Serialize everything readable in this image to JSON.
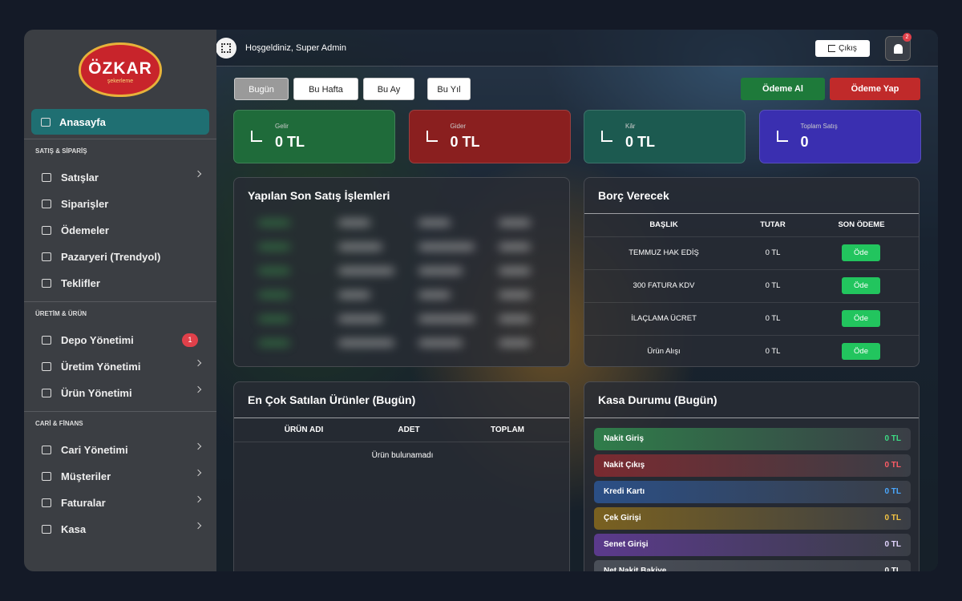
{
  "logo": {
    "brand": "ÖZKAR",
    "tagline": "şekerleme"
  },
  "header": {
    "welcome": "Hoşgeldiniz, Super Admin",
    "logout": "Çıkış",
    "notifications": "2"
  },
  "sidebar": {
    "home": "Anasayfa",
    "sections": [
      {
        "title": "SATIŞ & SİPARİŞ",
        "items": [
          {
            "label": "Satışlar",
            "chevron": true
          },
          {
            "label": "Siparişler"
          },
          {
            "label": "Ödemeler"
          },
          {
            "label": "Pazaryeri (Trendyol)"
          },
          {
            "label": "Teklifler"
          }
        ]
      },
      {
        "title": "ÜRETİM & ÜRÜN",
        "items": [
          {
            "label": "Depo Yönetimi",
            "badge": "1"
          },
          {
            "label": "Üretim Yönetimi",
            "chevron": true
          },
          {
            "label": "Ürün Yönetimi",
            "chevron": true
          }
        ]
      },
      {
        "title": "CARİ & FİNANS",
        "items": [
          {
            "label": "Cari Yönetimi",
            "chevron": true
          },
          {
            "label": "Müşteriler",
            "chevron": true
          },
          {
            "label": "Faturalar",
            "chevron": true
          },
          {
            "label": "Kasa",
            "chevron": true
          }
        ]
      }
    ]
  },
  "filters": [
    "Bugün",
    "Bu Hafta",
    "Bu Ay",
    "Bu Yıl"
  ],
  "actions": [
    "Ödeme Al",
    "Ödeme Yap"
  ],
  "stats": [
    {
      "label": "Gelir",
      "value": "0 TL",
      "color": "#1f6b3a"
    },
    {
      "label": "Gider",
      "value": "0 TL",
      "color": "#8a1f1f"
    },
    {
      "label": "Kâr",
      "value": "0 TL",
      "color": "#1c5a50"
    },
    {
      "label": "Toplam Satış",
      "value": "0",
      "color": "#3a2fb0"
    }
  ],
  "recent_sales": {
    "title": "Yapılan Son Satış İşlemleri"
  },
  "debts": {
    "title": "Borç Verecek",
    "columns": [
      "BAŞLIK",
      "TUTAR",
      "SON ÖDEME"
    ],
    "rows": [
      [
        "TEMMUZ HAK EDİŞ",
        "0 TL",
        "Öde"
      ],
      [
        "300 FATURA KDV",
        "0 TL",
        "Öde"
      ],
      [
        "İLAÇLAMA ÜCRET",
        "0 TL",
        "Öde"
      ],
      [
        "Ürün Alışı",
        "0 TL",
        "Öde"
      ]
    ]
  },
  "top_products": {
    "title": "En Çok Satılan Ürünler (Bugün)",
    "columns": [
      "ÜRÜN ADI",
      "ADET",
      "TOPLAM"
    ],
    "empty": "Ürün bulunamadı"
  },
  "cash": {
    "title": "Kasa Durumu (Bugün)",
    "rows": [
      {
        "label": "Nakit Giriş",
        "value": "0 TL",
        "color": "#2f7d4a",
        "text": "#3ddc84"
      },
      {
        "label": "Nakit Çıkış",
        "value": "0 TL",
        "color": "#7a2a30",
        "text": "#ff5c66"
      },
      {
        "label": "Kredi Kartı",
        "value": "0 TL",
        "color": "#2b4f86",
        "text": "#4aa8ff"
      },
      {
        "label": "Çek Girişi",
        "value": "0 TL",
        "color": "#7a6120",
        "text": "#f5c542"
      },
      {
        "label": "Senet Girişi",
        "value": "0 TL",
        "color": "#5b3a8c",
        "text": "#e2d4ff"
      },
      {
        "label": "Net Nakit Bakiye",
        "value": "0 TL",
        "color": "#4a4f58",
        "text": "#ffffff"
      }
    ]
  }
}
